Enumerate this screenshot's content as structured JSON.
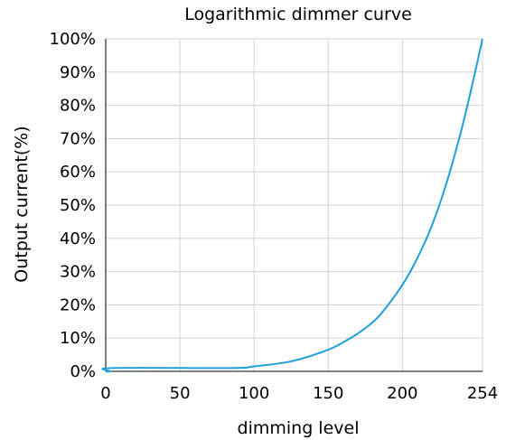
{
  "chart_data": {
    "type": "line",
    "title": "Logarithmic dimmer curve",
    "xlabel": "dimming level",
    "ylabel": "Output current(%)",
    "xlim": [
      0,
      254
    ],
    "ylim": [
      0,
      100
    ],
    "x_ticks": [
      0,
      50,
      100,
      150,
      200,
      254
    ],
    "y_ticks": [
      0,
      10,
      20,
      30,
      40,
      50,
      60,
      70,
      80,
      90,
      100
    ],
    "y_tick_labels": [
      "0%",
      "10%",
      "20%",
      "30%",
      "40%",
      "50%",
      "60%",
      "70%",
      "80%",
      "90%",
      "100%"
    ],
    "grid": true,
    "line_color": "#1fa0d8",
    "series": [
      {
        "x": [
          0,
          3,
          4,
          85,
          100,
          125,
          150,
          165,
          175,
          185,
          200,
          210,
          220,
          230,
          240,
          248,
          254
        ],
        "y": [
          0,
          0,
          1,
          1,
          1.5,
          3,
          6.5,
          10,
          13,
          17,
          26,
          34,
          44,
          57,
          73,
          88,
          100
        ]
      }
    ]
  }
}
